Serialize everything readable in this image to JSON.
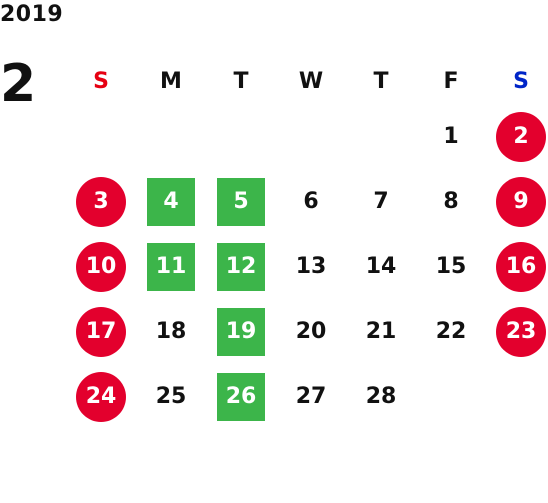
{
  "calendar": {
    "year": "2019",
    "month": "2",
    "weekday_headers": [
      "S",
      "M",
      "T",
      "W",
      "T",
      "F",
      "S"
    ],
    "weeks": [
      [
        {
          "label": "",
          "type": "empty"
        },
        {
          "label": "",
          "type": "empty"
        },
        {
          "label": "",
          "type": "empty"
        },
        {
          "label": "",
          "type": "empty"
        },
        {
          "label": "",
          "type": "empty"
        },
        {
          "label": "1",
          "type": "normal"
        },
        {
          "label": "2",
          "type": "holiday"
        }
      ],
      [
        {
          "label": "3",
          "type": "holiday"
        },
        {
          "label": "4",
          "type": "green"
        },
        {
          "label": "5",
          "type": "green"
        },
        {
          "label": "6",
          "type": "normal"
        },
        {
          "label": "7",
          "type": "normal"
        },
        {
          "label": "8",
          "type": "normal"
        },
        {
          "label": "9",
          "type": "holiday"
        }
      ],
      [
        {
          "label": "10",
          "type": "holiday"
        },
        {
          "label": "11",
          "type": "green"
        },
        {
          "label": "12",
          "type": "green"
        },
        {
          "label": "13",
          "type": "normal"
        },
        {
          "label": "14",
          "type": "normal"
        },
        {
          "label": "15",
          "type": "normal"
        },
        {
          "label": "16",
          "type": "holiday"
        }
      ],
      [
        {
          "label": "17",
          "type": "holiday"
        },
        {
          "label": "18",
          "type": "normal"
        },
        {
          "label": "19",
          "type": "green"
        },
        {
          "label": "20",
          "type": "normal"
        },
        {
          "label": "21",
          "type": "normal"
        },
        {
          "label": "22",
          "type": "normal"
        },
        {
          "label": "23",
          "type": "holiday"
        }
      ],
      [
        {
          "label": "24",
          "type": "holiday"
        },
        {
          "label": "25",
          "type": "normal"
        },
        {
          "label": "26",
          "type": "green"
        },
        {
          "label": "27",
          "type": "normal"
        },
        {
          "label": "28",
          "type": "normal"
        },
        {
          "label": "",
          "type": "empty"
        },
        {
          "label": "",
          "type": "empty"
        }
      ]
    ]
  },
  "colors": {
    "holiday": "#e3002d",
    "green_marker": "#3cb54a",
    "sunday_header": "#e60012",
    "saturday_header": "#0025c8",
    "text": "#111111"
  }
}
